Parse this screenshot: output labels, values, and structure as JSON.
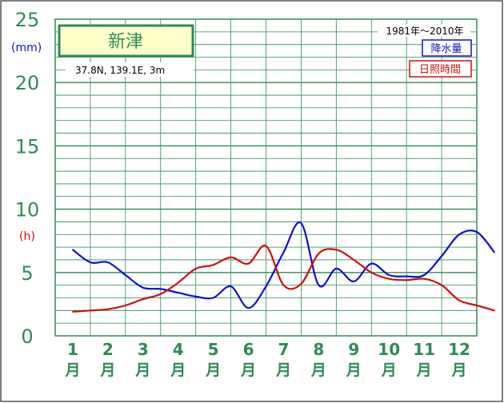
{
  "chart_data": {
    "type": "line",
    "title": "新津",
    "location": "37.8N,  139.1E,  3m",
    "period": "1981年〜2010年",
    "unit_precip": "(mm)",
    "unit_sun": "(h)",
    "y_ticks": [
      "0",
      "5",
      "10",
      "15",
      "20",
      "25"
    ],
    "ylim": [
      0,
      25
    ],
    "grid": true,
    "legend_position": "top-right",
    "categories": [
      {
        "num": "1",
        "unit": "月"
      },
      {
        "num": "2",
        "unit": "月"
      },
      {
        "num": "3",
        "unit": "月"
      },
      {
        "num": "4",
        "unit": "月"
      },
      {
        "num": "5",
        "unit": "月"
      },
      {
        "num": "6",
        "unit": "月"
      },
      {
        "num": "7",
        "unit": "月"
      },
      {
        "num": "8",
        "unit": "月"
      },
      {
        "num": "9",
        "unit": "月"
      },
      {
        "num": "10",
        "unit": "月"
      },
      {
        "num": "11",
        "unit": "月"
      },
      {
        "num": "12",
        "unit": "月"
      }
    ],
    "series": [
      {
        "name": "降水量",
        "color": "#1010cc",
        "x": [
          0.5,
          1.0,
          1.5,
          2.0,
          2.5,
          3.0,
          3.5,
          4.0,
          4.5,
          5.0,
          5.5,
          6.0,
          6.5,
          7.0,
          7.5,
          8.0,
          8.5,
          9.0,
          9.5,
          10.0,
          10.5,
          11.0,
          11.5,
          12.0,
          12.5
        ],
        "values": [
          6.8,
          5.8,
          5.8,
          4.8,
          3.8,
          3.7,
          3.4,
          3.1,
          3.0,
          3.9,
          2.2,
          3.9,
          6.6,
          8.9,
          4.0,
          5.3,
          4.3,
          5.7,
          4.8,
          4.7,
          4.8,
          6.3,
          8.0,
          8.2,
          6.6
        ]
      },
      {
        "name": "日照時間",
        "color": "#cc1010",
        "x": [
          0.5,
          1.0,
          1.5,
          2.0,
          2.5,
          3.0,
          3.5,
          4.0,
          4.5,
          5.0,
          5.5,
          6.0,
          6.5,
          7.0,
          7.5,
          8.0,
          8.5,
          9.0,
          9.5,
          10.0,
          10.5,
          11.0,
          11.5,
          12.0,
          12.5
        ],
        "values": [
          1.9,
          2.0,
          2.1,
          2.4,
          2.9,
          3.3,
          4.2,
          5.3,
          5.6,
          6.2,
          5.7,
          7.1,
          4.0,
          4.1,
          6.5,
          6.8,
          6.0,
          5.0,
          4.5,
          4.4,
          4.5,
          4.0,
          2.8,
          2.4,
          2.0
        ]
      }
    ]
  }
}
